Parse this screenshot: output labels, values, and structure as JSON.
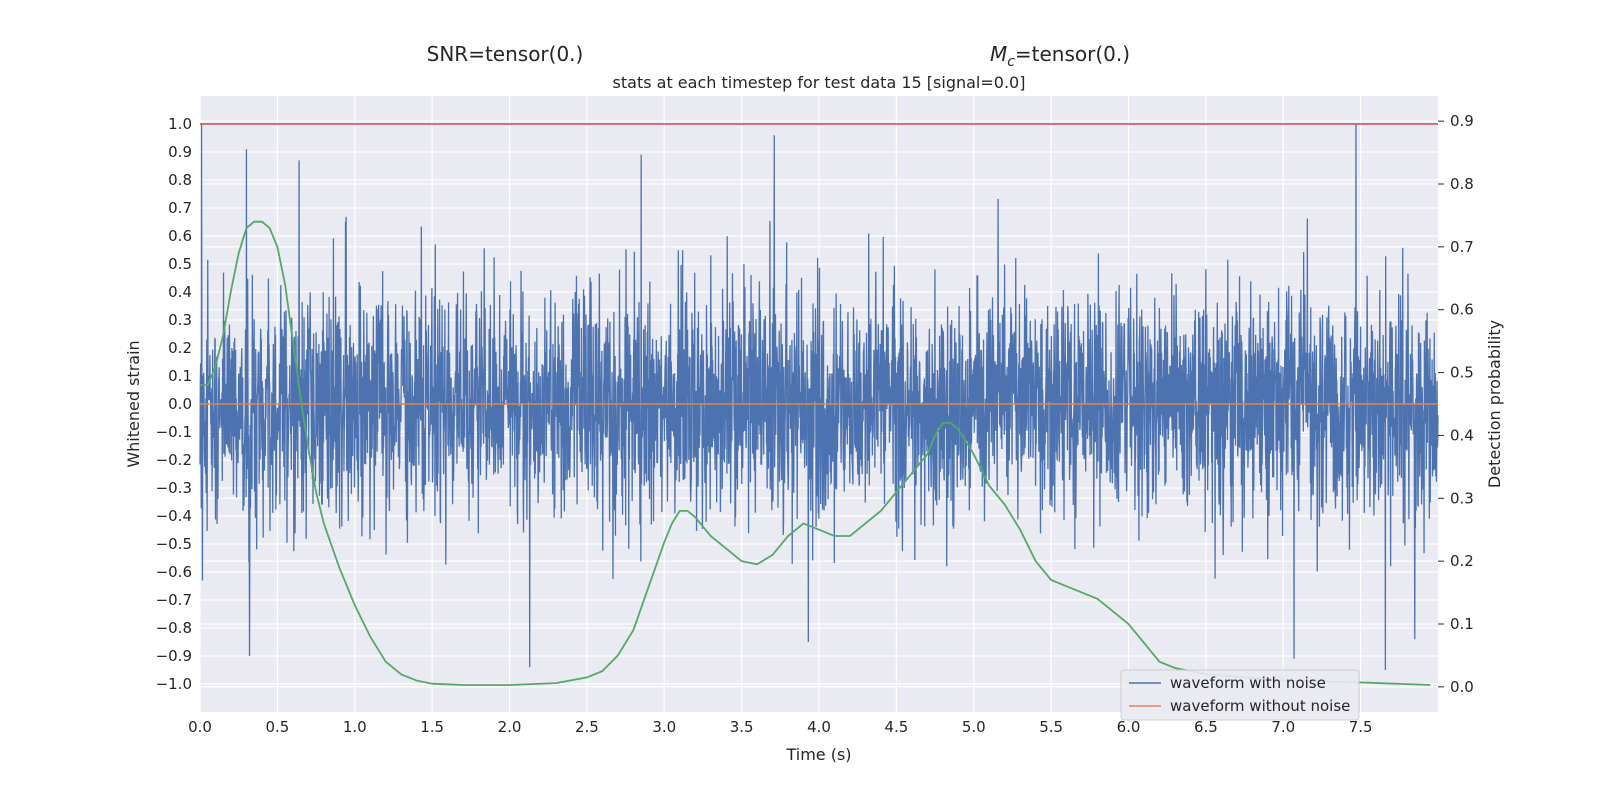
{
  "chart_data": {
    "type": "line",
    "supertitle_left": "SNR=tensor(0.)",
    "supertitle_right_symbol": "M",
    "supertitle_right_subscript": "c",
    "supertitle_right_value": "=tensor(0.)",
    "title": "stats at each timestep for test data 15 [signal=0.0]",
    "xlabel": "Time (s)",
    "ylabel": "Whitened strain",
    "y2label": "Detection probability",
    "xlim": [
      0.0,
      8.0
    ],
    "ylim": [
      -1.1,
      1.1
    ],
    "y2lim": [
      -0.04,
      0.94
    ],
    "x_ticks": [
      "0.0",
      "0.5",
      "1.0",
      "1.5",
      "2.0",
      "2.5",
      "3.0",
      "3.5",
      "4.0",
      "4.5",
      "5.0",
      "5.5",
      "6.0",
      "6.5",
      "7.0",
      "7.5"
    ],
    "y_ticks": [
      "1.0",
      "0.9",
      "0.8",
      "0.7",
      "0.6",
      "0.5",
      "0.4",
      "0.3",
      "0.2",
      "0.1",
      "0.0",
      "−0.1",
      "−0.2",
      "−0.3",
      "−0.4",
      "−0.5",
      "−0.6",
      "−0.7",
      "−0.8",
      "−0.9",
      "−1.0"
    ],
    "y2_ticks": [
      "0.9",
      "0.8",
      "0.7",
      "0.6",
      "0.5",
      "0.4",
      "0.3",
      "0.2",
      "0.1",
      "0.0"
    ],
    "grid": true,
    "legend_position": "lower-right",
    "colors": {
      "background": "#eaeaf2",
      "grid": "#ffffff",
      "noise": "#4c72b0",
      "no_noise": "#dd8452",
      "probability": "#55a868",
      "threshold": "#c44e52"
    },
    "series": [
      {
        "name": "waveform with noise",
        "axis": "left",
        "noise_spread_sigma": 0.2,
        "extreme_peaks": [
          {
            "x": 0.01,
            "y": 1.0
          },
          {
            "x": 0.3,
            "y": 0.91
          },
          {
            "x": 0.32,
            "y": -0.9
          },
          {
            "x": 0.64,
            "y": 0.87
          },
          {
            "x": 2.13,
            "y": -0.94
          },
          {
            "x": 2.85,
            "y": 0.89
          },
          {
            "x": 3.71,
            "y": 0.96
          },
          {
            "x": 3.93,
            "y": -0.85
          },
          {
            "x": 7.07,
            "y": -0.91
          },
          {
            "x": 7.47,
            "y": 1.0
          },
          {
            "x": 7.66,
            "y": -0.95
          },
          {
            "x": 7.85,
            "y": -0.84
          }
        ]
      },
      {
        "name": "waveform without noise",
        "axis": "left",
        "x": [
          0.0,
          8.0
        ],
        "y": [
          0.0,
          0.0
        ]
      },
      {
        "name": "",
        "axis": "right",
        "x": [
          0.0,
          0.05,
          0.1,
          0.15,
          0.2,
          0.25,
          0.3,
          0.35,
          0.4,
          0.45,
          0.5,
          0.55,
          0.6,
          0.65,
          0.7,
          0.75,
          0.8,
          0.9,
          1.0,
          1.1,
          1.2,
          1.3,
          1.4,
          1.5,
          1.7,
          2.0,
          2.3,
          2.5,
          2.6,
          2.7,
          2.8,
          2.9,
          3.0,
          3.05,
          3.1,
          3.15,
          3.2,
          3.3,
          3.4,
          3.5,
          3.6,
          3.7,
          3.8,
          3.9,
          4.0,
          4.1,
          4.2,
          4.3,
          4.4,
          4.5,
          4.6,
          4.7,
          4.75,
          4.8,
          4.85,
          4.9,
          5.0,
          5.1,
          5.2,
          5.3,
          5.4,
          5.5,
          5.6,
          5.7,
          5.8,
          5.9,
          6.0,
          6.1,
          6.2,
          6.3,
          6.5,
          7.0,
          7.5,
          7.95
        ],
        "y": [
          0.48,
          0.48,
          0.51,
          0.56,
          0.63,
          0.69,
          0.73,
          0.74,
          0.74,
          0.73,
          0.7,
          0.64,
          0.55,
          0.46,
          0.38,
          0.31,
          0.26,
          0.19,
          0.13,
          0.08,
          0.04,
          0.02,
          0.01,
          0.005,
          0.003,
          0.003,
          0.006,
          0.015,
          0.025,
          0.05,
          0.09,
          0.16,
          0.23,
          0.26,
          0.28,
          0.28,
          0.27,
          0.24,
          0.22,
          0.2,
          0.195,
          0.21,
          0.24,
          0.26,
          0.25,
          0.24,
          0.24,
          0.26,
          0.28,
          0.31,
          0.34,
          0.37,
          0.4,
          0.42,
          0.42,
          0.41,
          0.37,
          0.32,
          0.29,
          0.25,
          0.2,
          0.17,
          0.16,
          0.15,
          0.14,
          0.12,
          0.1,
          0.07,
          0.04,
          0.03,
          0.02,
          0.01,
          0.007,
          0.003
        ]
      }
    ],
    "threshold_line": {
      "axis": "left",
      "y": 1.0
    },
    "legend": {
      "items": [
        "waveform with noise",
        "waveform without noise"
      ]
    }
  }
}
